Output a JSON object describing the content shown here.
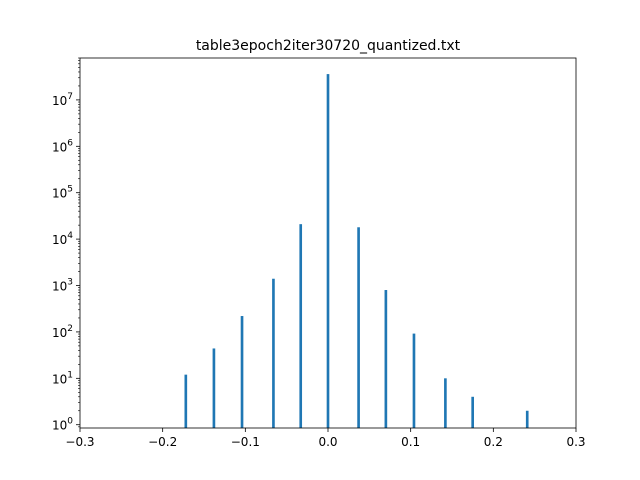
{
  "chart_data": {
    "type": "bar",
    "title": "table3epoch2iter30720_quantized.txt",
    "xlabel": "",
    "ylabel": "",
    "xlim": [
      -0.3,
      0.3
    ],
    "ylim": [
      0.85,
      80000000
    ],
    "yscale": "log",
    "grid": false,
    "bar_color": "#1f77b4",
    "x_ticks": [
      {
        "value": -0.3,
        "label": "−0.3"
      },
      {
        "value": -0.2,
        "label": "−0.2"
      },
      {
        "value": -0.1,
        "label": "−0.1"
      },
      {
        "value": 0.0,
        "label": "0.0"
      },
      {
        "value": 0.1,
        "label": "0.1"
      },
      {
        "value": 0.2,
        "label": "0.2"
      },
      {
        "value": 0.3,
        "label": "0.3"
      }
    ],
    "y_ticks": [
      {
        "value": 1,
        "base": "10",
        "exp": "0"
      },
      {
        "value": 10,
        "base": "10",
        "exp": "1"
      },
      {
        "value": 100,
        "base": "10",
        "exp": "2"
      },
      {
        "value": 1000,
        "base": "10",
        "exp": "3"
      },
      {
        "value": 10000,
        "base": "10",
        "exp": "4"
      },
      {
        "value": 100000,
        "base": "10",
        "exp": "5"
      },
      {
        "value": 1000000,
        "base": "10",
        "exp": "6"
      },
      {
        "value": 10000000,
        "base": "10",
        "exp": "7"
      }
    ],
    "bin_width": 0.004,
    "bars": [
      {
        "x": -0.172,
        "y": 12
      },
      {
        "x": -0.138,
        "y": 44
      },
      {
        "x": -0.104,
        "y": 220
      },
      {
        "x": -0.066,
        "y": 1400
      },
      {
        "x": -0.033,
        "y": 21000
      },
      {
        "x": 0.0,
        "y": 36000000
      },
      {
        "x": 0.037,
        "y": 18000
      },
      {
        "x": 0.07,
        "y": 800
      },
      {
        "x": 0.104,
        "y": 92
      },
      {
        "x": 0.142,
        "y": 10
      },
      {
        "x": 0.175,
        "y": 4
      },
      {
        "x": 0.241,
        "y": 2
      }
    ]
  }
}
